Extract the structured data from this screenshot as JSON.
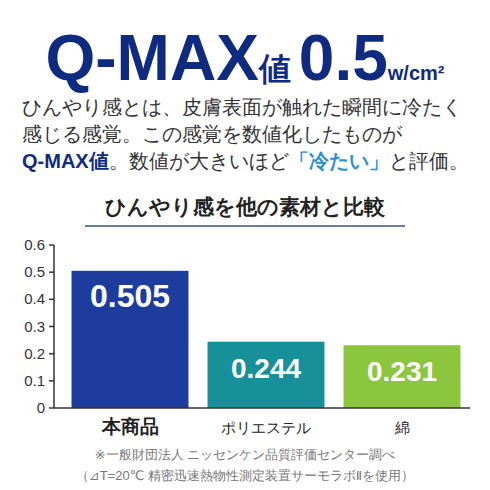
{
  "header": {
    "parts": [
      "Q-MAX",
      "値",
      "0.5",
      "w/cm²"
    ]
  },
  "description": {
    "lines": [
      "ひんやり感とは、皮膚表面が触れた瞬間に冷たく",
      "感じる感覚。この感覚を数値化したものが"
    ],
    "term": "Q-MAX値",
    "middle": "。数値が大きいほど",
    "quote": "「冷たい」",
    "end": "と評価。"
  },
  "chart_data": {
    "type": "bar",
    "title": "ひんやり感を他の素材と比較",
    "categories": [
      "本商品",
      "ポリエステル",
      "綿"
    ],
    "values": [
      0.505,
      0.244,
      0.231
    ],
    "colors": [
      "#1e3c9e",
      "#17909a",
      "#8cc63e"
    ],
    "ylim": [
      0,
      0.6
    ],
    "yticks": [
      0,
      0.1,
      0.2,
      0.3,
      0.4,
      0.5,
      0.6
    ],
    "grid": false,
    "data_labels": true
  },
  "footnotes": [
    "※一般財団法人 ニッセンケン品質評価センター調べ",
    "（⊿T=20℃ 精密迅速熱物性測定装置サーモラボⅡを使用）"
  ]
}
